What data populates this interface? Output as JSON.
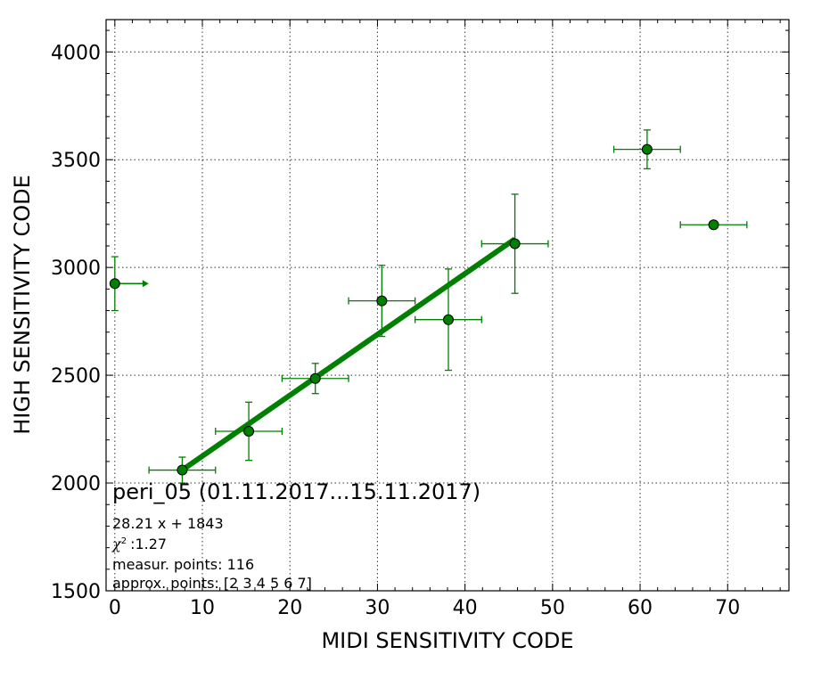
{
  "chart_data": {
    "type": "scatter",
    "xlabel": "MIDI SENSITIVITY CODE",
    "ylabel": "HIGH SENSITIVITY CODE",
    "xlim": [
      -1,
      77
    ],
    "ylim": [
      1500,
      4150
    ],
    "x_ticks": [
      0,
      10,
      20,
      30,
      40,
      50,
      60,
      70
    ],
    "y_ticks": [
      1500,
      2000,
      2500,
      3000,
      3500,
      4000
    ],
    "x_minor_step": 2,
    "y_minor_step": 100,
    "grid": true,
    "colors": {
      "series": "#008000",
      "marker_edge": "#000000"
    },
    "points": [
      {
        "x": 0.0,
        "y": 2925,
        "xerr": 0,
        "yerr": 125,
        "note": "arrow"
      },
      {
        "x": 7.7,
        "y": 2060,
        "xerr": 3.8,
        "yerr": 60
      },
      {
        "x": 15.3,
        "y": 2240,
        "xerr": 3.8,
        "yerr": 135
      },
      {
        "x": 22.9,
        "y": 2485,
        "xerr": 3.8,
        "yerr": 70
      },
      {
        "x": 30.5,
        "y": 2845,
        "xerr": 3.8,
        "yerr": 165
      },
      {
        "x": 38.1,
        "y": 2758,
        "xerr": 3.8,
        "yerr": 235
      },
      {
        "x": 45.7,
        "y": 3110,
        "xerr": 3.8,
        "yerr": 230
      },
      {
        "x": 60.8,
        "y": 3548,
        "xerr": 3.8,
        "yerr": 90
      },
      {
        "x": 68.4,
        "y": 3198,
        "xerr": 3.8,
        "yerr": 0
      }
    ],
    "fit": {
      "slope": 28.21,
      "intercept": 1843,
      "x_range": [
        7.7,
        45.7
      ]
    },
    "annotation": {
      "title": "peri_05 (01.11.2017...15.11.2017)",
      "equation": "28.21 x + 1843",
      "chi_symbol": "χ",
      "chi_value": ":1.27",
      "measur_points": "measur. points: 116",
      "approx_points": "approx. points: [2 3 4 5 6 7]"
    }
  }
}
